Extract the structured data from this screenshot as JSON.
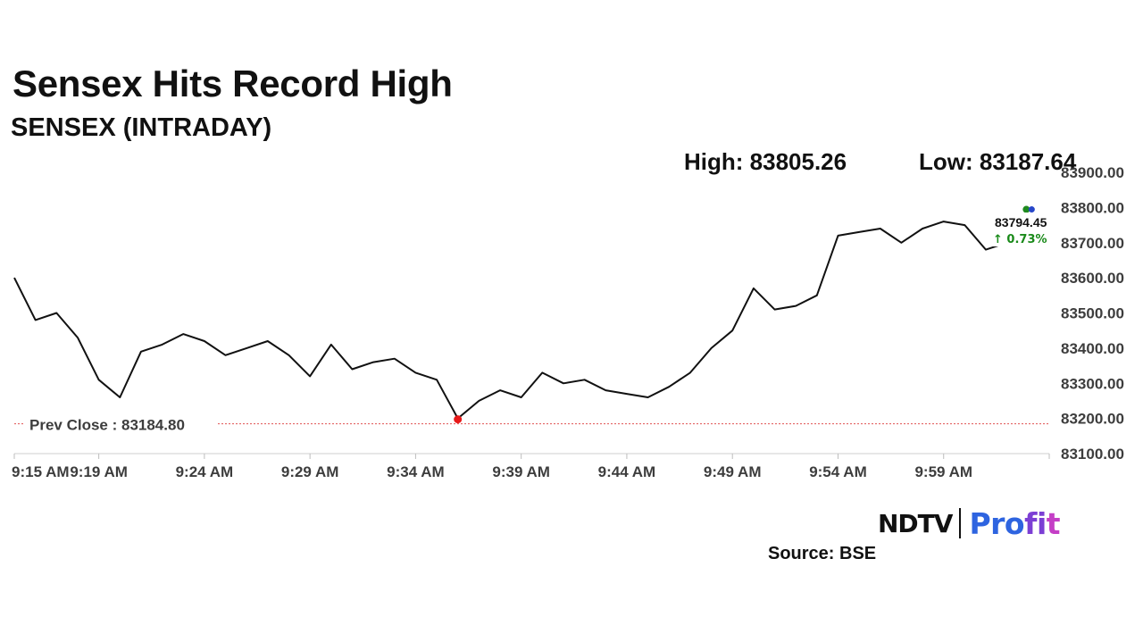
{
  "headline": "Sensex Hits Record High",
  "subheadline": "SENSEX (INTRADAY)",
  "stats": {
    "high": "High: 83805.26",
    "low": "Low: 83187.64"
  },
  "brand": {
    "ndtv": "NDTV",
    "profit_1": "Pro",
    "profit_2": "fi",
    "profit_3": "t"
  },
  "source": "Source: BSE",
  "colors": {
    "line": "#111111",
    "prev_close_line": "#e05050",
    "low_marker": "#e81919",
    "change_positive": "#1a8a1a",
    "end_dot_green": "#1f8a1f",
    "end_dot_blue": "#2747c9",
    "axis_text": "#3d3d3d"
  },
  "chart_data": {
    "type": "line",
    "title": "SENSEX (INTRADAY)",
    "xlabel": "",
    "ylabel": "",
    "ylim": [
      83100,
      83900
    ],
    "yticks": [
      83900,
      83800,
      83700,
      83600,
      83500,
      83400,
      83300,
      83200,
      83100
    ],
    "ytick_labels": [
      "83900.00",
      "83800.00",
      "83700.00",
      "83600.00",
      "83500.00",
      "83400.00",
      "83300.00",
      "83200.00",
      "83100.00"
    ],
    "xlim": [
      "9:15",
      "10:04"
    ],
    "xticks": [
      "9:15",
      "9:19",
      "9:24",
      "9:29",
      "9:34",
      "9:39",
      "9:44",
      "9:49",
      "9:54",
      "9:59"
    ],
    "xtick_labels": [
      "9:15 AM",
      "9:19 AM",
      "9:24 AM",
      "9:29 AM",
      "9:34 AM",
      "9:39 AM",
      "9:44 AM",
      "9:49 AM",
      "9:54 AM",
      "9:59 AM"
    ],
    "grid": false,
    "series": [
      {
        "x": [
          "9:15",
          "9:16",
          "9:17",
          "9:18",
          "9:19",
          "9:20",
          "9:21",
          "9:22",
          "9:23",
          "9:24",
          "9:25",
          "9:26",
          "9:27",
          "9:28",
          "9:29",
          "9:30",
          "9:31",
          "9:32",
          "9:33",
          "9:34",
          "9:35",
          "9:36",
          "9:37",
          "9:38",
          "9:39",
          "9:40",
          "9:41",
          "9:42",
          "9:43",
          "9:44",
          "9:45",
          "9:46",
          "9:47",
          "9:48",
          "9:49",
          "9:50",
          "9:51",
          "9:52",
          "9:53",
          "9:54",
          "9:55",
          "9:56",
          "9:57",
          "9:58",
          "9:59",
          "10:00",
          "10:01",
          "10:02",
          "10:03"
        ],
        "values": [
          83600,
          83480,
          83500,
          83430,
          83310,
          83260,
          83390,
          83410,
          83440,
          83420,
          83380,
          83400,
          83420,
          83380,
          83320,
          83410,
          83340,
          83360,
          83370,
          83330,
          83310,
          83200,
          83250,
          83280,
          83260,
          83330,
          83300,
          83310,
          83280,
          83270,
          83260,
          83290,
          83330,
          83400,
          83450,
          83570,
          83510,
          83520,
          83550,
          83720,
          83730,
          83740,
          83700,
          83740,
          83760,
          83750,
          83680,
          83700,
          83794.45
        ]
      }
    ],
    "reference_line": {
      "label": "Prev Close : 83184.80",
      "value": 83184.8
    },
    "last_value_label": "83794.45",
    "change_label": "↑ 0.73%"
  }
}
